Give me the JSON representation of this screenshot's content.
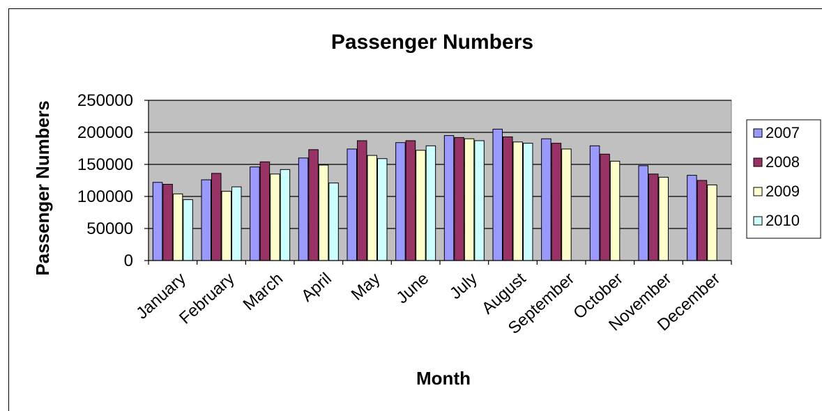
{
  "chart_data": {
    "type": "bar",
    "title": "Passenger Numbers",
    "xlabel": "Month",
    "ylabel": "Passenger Numbers",
    "ylim": [
      0,
      250000
    ],
    "yticks": [
      0,
      50000,
      100000,
      150000,
      200000,
      250000
    ],
    "grid": true,
    "legend_position": "right",
    "categories": [
      "January",
      "February",
      "March",
      "April",
      "May",
      "June",
      "July",
      "August",
      "September",
      "October",
      "November",
      "December"
    ],
    "series": [
      {
        "name": "2007",
        "color": "#9999FF",
        "values": [
          122000,
          126000,
          146000,
          160000,
          174000,
          184000,
          195000,
          205000,
          190000,
          179000,
          148000,
          133000
        ]
      },
      {
        "name": "2008",
        "color": "#993366",
        "values": [
          119000,
          136000,
          154000,
          173000,
          187000,
          187000,
          192000,
          193000,
          183000,
          166000,
          135000,
          125000
        ]
      },
      {
        "name": "2009",
        "color": "#FFFFCC",
        "values": [
          104000,
          108000,
          135000,
          149000,
          164000,
          172000,
          190000,
          185000,
          174000,
          155000,
          130000,
          118000
        ]
      },
      {
        "name": "2010",
        "color": "#CCFFFF",
        "values": [
          95000,
          115000,
          142000,
          121000,
          159000,
          179000,
          187000,
          183000,
          null,
          null,
          null,
          null
        ]
      }
    ],
    "plot_background": "#C0C0C0"
  }
}
